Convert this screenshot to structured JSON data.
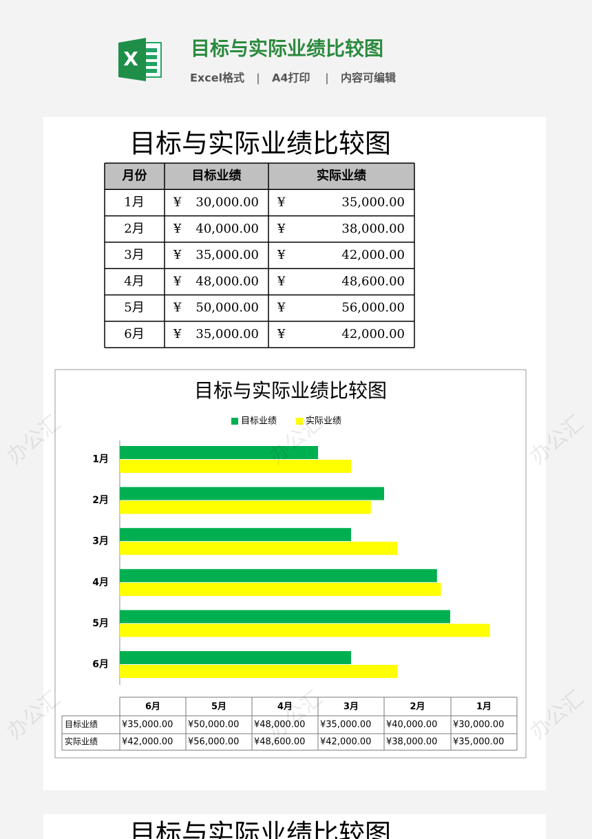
{
  "header": {
    "title": "目标与实际业绩比较图",
    "tags": [
      "Excel格式",
      "A4打印",
      "内容可编辑"
    ],
    "separator": "|"
  },
  "sheet": {
    "title": "目标与实际业绩比较图",
    "table": {
      "headers": [
        "月份",
        "目标业绩",
        "实际业绩"
      ],
      "rows": [
        [
          "1月",
          "¥",
          "30,000.00",
          "¥",
          "35,000.00"
        ],
        [
          "2月",
          "¥",
          "40,000.00",
          "¥",
          "38,000.00"
        ],
        [
          "3月",
          "¥",
          "35,000.00",
          "¥",
          "42,000.00"
        ],
        [
          "4月",
          "¥",
          "48,000.00",
          "¥",
          "48,600.00"
        ],
        [
          "5月",
          "¥",
          "50,000.00",
          "¥",
          "56,000.00"
        ],
        [
          "6月",
          "¥",
          "35,000.00",
          "¥",
          "42,000.00"
        ]
      ]
    }
  },
  "chart_data": {
    "type": "bar",
    "orientation": "horizontal",
    "title": "目标与实际业绩比较图",
    "categories": [
      "1月",
      "2月",
      "3月",
      "4月",
      "5月",
      "6月"
    ],
    "series": [
      {
        "name": "目标业绩",
        "color": "#00b050",
        "values": [
          30000,
          40000,
          35000,
          48000,
          50000,
          35000
        ],
        "value_labels": [
          "¥30,000.00",
          "¥40,000.00",
          "¥35,000.00",
          "¥48,000.00",
          "¥50,000.00",
          "¥35,000.00"
        ]
      },
      {
        "name": "实际业绩",
        "color": "#ffff00",
        "values": [
          35000,
          38000,
          42000,
          48600,
          56000,
          42000
        ],
        "value_labels": [
          "¥35,000.00",
          "¥38,000.00",
          "¥42,000.00",
          "¥48,600.00",
          "¥56,000.00",
          "¥42,000.00"
        ]
      }
    ],
    "xlim": [
      0,
      60000
    ]
  },
  "watermark": "办公汇",
  "next_page_title": "目标与实际业绩比较图"
}
